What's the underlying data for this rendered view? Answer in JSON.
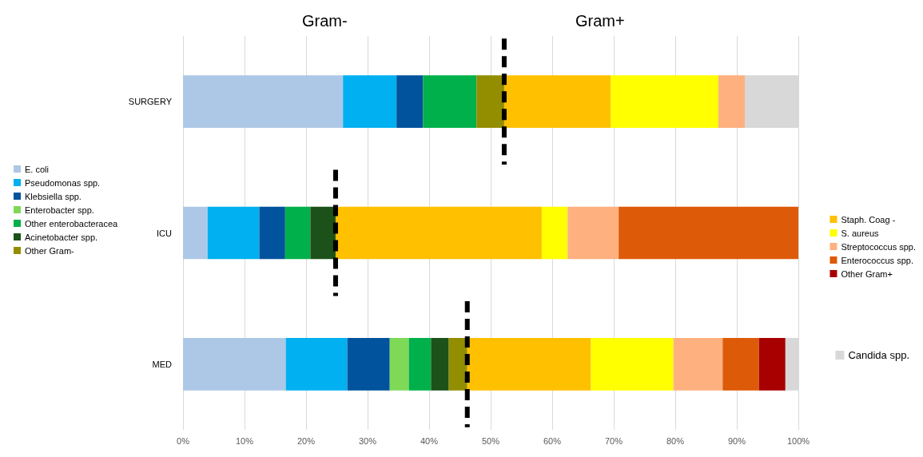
{
  "chart_data": {
    "type": "bar",
    "orientation": "horizontal",
    "stacked": true,
    "categories": [
      "SURGERY",
      "ICU",
      "MED"
    ],
    "series": [
      {
        "name": "E. coli",
        "color": "#adc8e6",
        "values": [
          26.0,
          4.0,
          16.7
        ]
      },
      {
        "name": "Pseudomonas spp.",
        "color": "#00b0f0",
        "values": [
          8.7,
          8.4,
          10.0
        ]
      },
      {
        "name": "Klebsiella spp.",
        "color": "#00539c",
        "values": [
          4.3,
          4.2,
          6.9
        ]
      },
      {
        "name": "Enterobacter spp.",
        "color": "#7ed957",
        "values": [
          0,
          0,
          3.1
        ]
      },
      {
        "name": "Other enterobacteracea",
        "color": "#00b04a",
        "values": [
          8.7,
          4.1,
          3.6
        ]
      },
      {
        "name": "Acinetobacter spp.",
        "color": "#1c5219",
        "values": [
          0,
          4.1,
          2.9
        ]
      },
      {
        "name": "Other Gram-",
        "color": "#928e00",
        "values": [
          4.5,
          0,
          3.0
        ]
      },
      {
        "name": "Staph. Coag -",
        "color": "#ffc000",
        "values": [
          17.3,
          33.5,
          20.1
        ]
      },
      {
        "name": "S. aureus",
        "color": "#ffff00",
        "values": [
          17.5,
          4.2,
          13.4
        ]
      },
      {
        "name": "Streptococcus spp.",
        "color": "#ffb07f",
        "values": [
          4.3,
          8.3,
          8.0
        ]
      },
      {
        "name": "Enterococcus spp.",
        "color": "#dd5a08",
        "values": [
          0,
          29.2,
          5.9
        ]
      },
      {
        "name": "Other Gram+",
        "color": "#a80000",
        "values": [
          0,
          0,
          4.3
        ]
      },
      {
        "name": "Candida spp.",
        "color": "#d8d8d8",
        "values": [
          8.7,
          0,
          2.1
        ]
      }
    ],
    "xlim": [
      0,
      100
    ],
    "xticks": [
      {
        "value": 0,
        "label": "0%"
      },
      {
        "value": 10,
        "label": "10%"
      },
      {
        "value": 20,
        "label": "20%"
      },
      {
        "value": 30,
        "label": "30%"
      },
      {
        "value": 40,
        "label": "40%"
      },
      {
        "value": 50,
        "label": "50%"
      },
      {
        "value": 60,
        "label": "60%"
      },
      {
        "value": 70,
        "label": "70%"
      },
      {
        "value": 80,
        "label": "80%"
      },
      {
        "value": 90,
        "label": "90%"
      },
      {
        "value": 100,
        "label": "100%"
      }
    ],
    "grid": "x",
    "legend": "left",
    "ref_lines": [
      {
        "axis": "x",
        "value": 52.2,
        "color": "#000000",
        "line_style": "dashed"
      },
      {
        "axis": "x",
        "value": 24.8,
        "color": "#000000",
        "line_style": "dashed"
      },
      {
        "axis": "x",
        "value": 46.2,
        "color": "#000000",
        "line_style": "dashed"
      }
    ],
    "annotations": [
      "Gram-",
      "Gram+"
    ]
  }
}
